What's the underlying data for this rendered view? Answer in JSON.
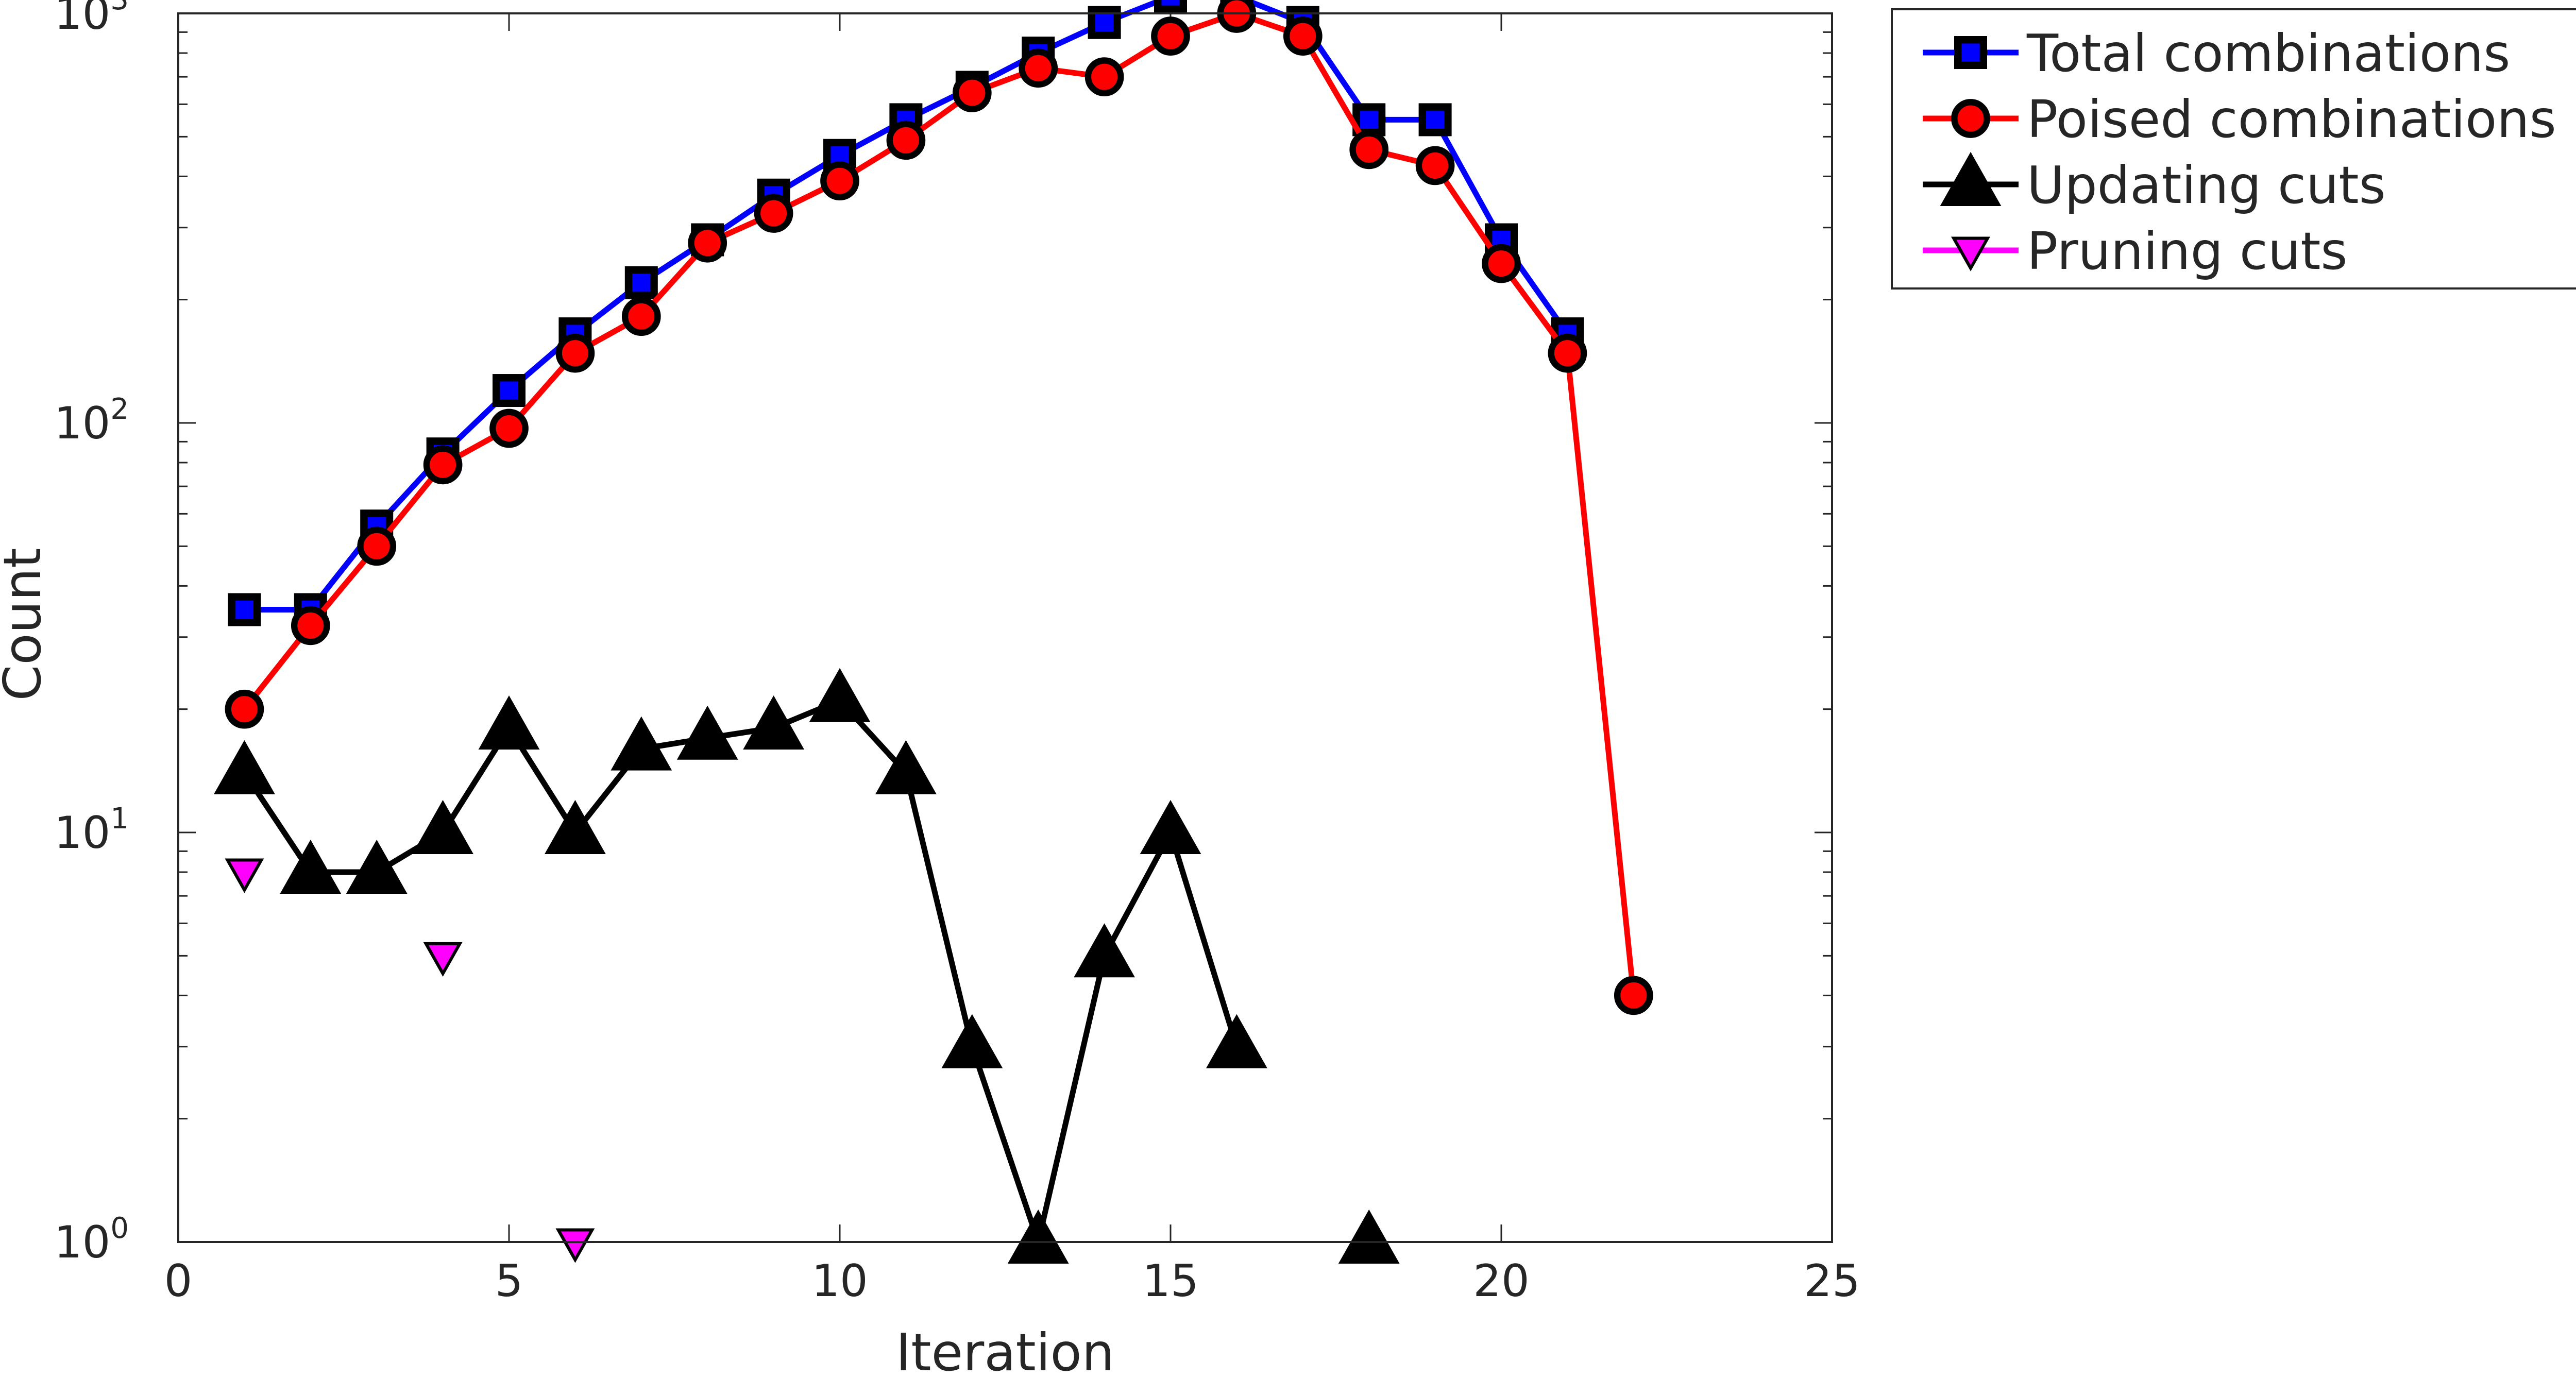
{
  "chart_data": {
    "type": "line",
    "xlabel": "Iteration",
    "ylabel": "Count",
    "xlim": [
      0,
      25
    ],
    "ylim": [
      1,
      1000
    ],
    "yscale": "log",
    "xticks": [
      0,
      5,
      10,
      15,
      20,
      25
    ],
    "yticks": [
      {
        "base": "10",
        "exp": "0",
        "value": 1
      },
      {
        "base": "10",
        "exp": "1",
        "value": 10
      },
      {
        "base": "10",
        "exp": "2",
        "value": 100
      },
      {
        "base": "10",
        "exp": "3",
        "value": 1000
      }
    ],
    "legend_position": "outside-top-right",
    "grid": false,
    "series": [
      {
        "name": "Total combinations",
        "color": "#0000ff",
        "marker": "square",
        "marker_fill": "#0000ff",
        "marker_edge": "#000000",
        "x": [
          1,
          2,
          3,
          4,
          5,
          6,
          7,
          8,
          9,
          10,
          11,
          12,
          13,
          14,
          15,
          16,
          17,
          18,
          19,
          20,
          21
        ],
        "y": [
          35,
          35,
          56,
          84,
          120,
          165,
          220,
          280,
          360,
          450,
          550,
          660,
          800,
          950,
          1100,
          1100,
          950,
          550,
          550,
          280,
          165
        ]
      },
      {
        "name": "Poised combinations",
        "color": "#ff0000",
        "marker": "circle",
        "marker_fill": "#ff0000",
        "marker_edge": "#000000",
        "x": [
          1,
          2,
          3,
          4,
          5,
          6,
          7,
          8,
          9,
          10,
          11,
          12,
          13,
          14,
          15,
          16,
          17,
          18,
          19,
          20,
          21,
          22
        ],
        "y": [
          20,
          32,
          50,
          79,
          97,
          148,
          182,
          275,
          325,
          390,
          490,
          640,
          735,
          700,
          880,
          1000,
          880,
          465,
          425,
          245,
          148,
          4
        ]
      },
      {
        "name": "Updating cuts",
        "color": "#000000",
        "marker": "triangle-up",
        "marker_fill": "#000000",
        "marker_edge": "#000000",
        "x": [
          1,
          2,
          3,
          4,
          5,
          6,
          7,
          8,
          9,
          10,
          11,
          12,
          13,
          14,
          15,
          16,
          18
        ],
        "y": [
          14,
          8,
          8,
          10,
          18,
          10,
          16,
          17,
          18,
          21,
          14,
          3,
          1,
          5,
          10,
          3,
          1
        ],
        "segments": [
          [
            0,
            15
          ],
          [
            16,
            16
          ]
        ]
      },
      {
        "name": "Pruning cuts",
        "color": "#ff00ff",
        "marker": "triangle-down",
        "marker_fill": "#ff00ff",
        "marker_edge": "#000000",
        "x": [
          1,
          4,
          6
        ],
        "y": [
          8,
          5,
          1
        ],
        "segments": [
          [
            0,
            0
          ],
          [
            1,
            1
          ],
          [
            2,
            2
          ]
        ]
      }
    ]
  }
}
